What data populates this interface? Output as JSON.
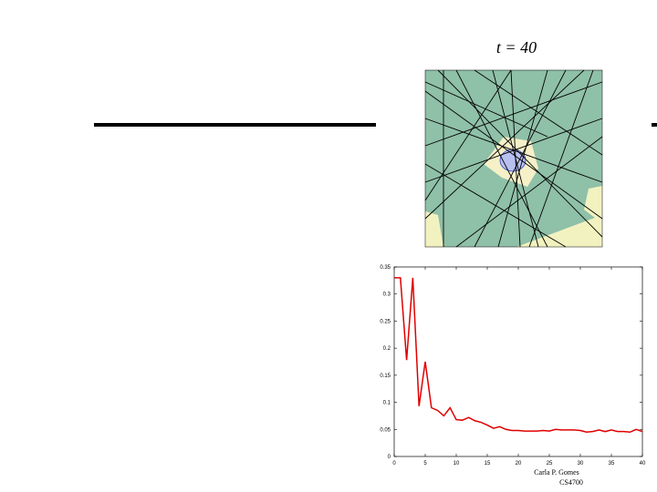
{
  "slide": {
    "title": "t = 40",
    "footer": [
      "Carla P. Gomes",
      "CS4700"
    ]
  },
  "chart_data": {
    "type": "line",
    "x": [
      0,
      1,
      2,
      3,
      4,
      5,
      6,
      7,
      8,
      9,
      10,
      11,
      12,
      13,
      14,
      15,
      16,
      17,
      18,
      19,
      20,
      21,
      22,
      23,
      24,
      25,
      26,
      27,
      28,
      29,
      30,
      31,
      32,
      33,
      34,
      35,
      36,
      37,
      38,
      39,
      40
    ],
    "values": [
      0.33,
      0.33,
      0.178,
      0.33,
      0.093,
      0.175,
      0.09,
      0.085,
      0.075,
      0.09,
      0.068,
      0.067,
      0.072,
      0.066,
      0.063,
      0.058,
      0.052,
      0.055,
      0.05,
      0.048,
      0.048,
      0.047,
      0.047,
      0.047,
      0.048,
      0.047,
      0.05,
      0.049,
      0.049,
      0.049,
      0.048,
      0.045,
      0.046,
      0.049,
      0.046,
      0.049,
      0.046,
      0.046,
      0.045,
      0.05,
      0.046
    ],
    "color": "#e00000",
    "xlim": [
      0,
      40
    ],
    "ylim": [
      0,
      0.35
    ],
    "xticks": [
      0,
      5,
      10,
      15,
      20,
      25,
      30,
      35,
      40
    ],
    "yticks": [
      0,
      0.05,
      0.1,
      0.15,
      0.2,
      0.25,
      0.3,
      0.35
    ]
  }
}
